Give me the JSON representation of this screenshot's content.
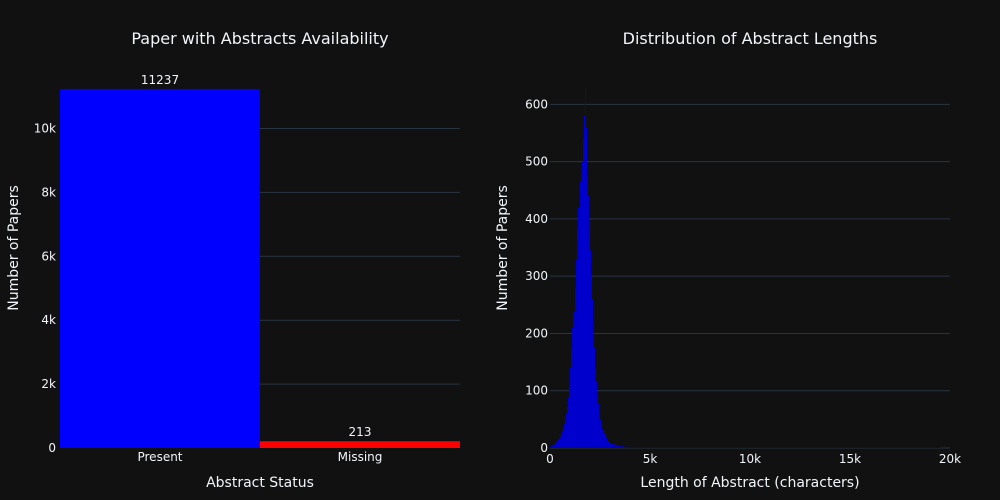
{
  "chart_data": [
    {
      "type": "bar",
      "title": "Paper with Abstracts Availability",
      "xlabel": "Abstract Status",
      "ylabel": "Number of Papers",
      "categories": [
        "Present",
        "Missing"
      ],
      "values": [
        11237,
        213
      ],
      "data_labels": [
        "11237",
        "213"
      ],
      "colors": [
        "#0000ff",
        "#ff0000"
      ],
      "ylim": [
        0,
        11830
      ],
      "yticks": [
        0,
        2000,
        4000,
        6000,
        8000,
        10000
      ],
      "ytick_labels": [
        "0",
        "2k",
        "4k",
        "6k",
        "8k",
        "10k"
      ],
      "grid": true,
      "legend": "none"
    },
    {
      "type": "bar",
      "subtype": "histogram",
      "title": "Distribution of Abstract Lengths",
      "xlabel": "Length of Abstract (characters)",
      "ylabel": "Number of Papers",
      "bar_color": "#0000cd",
      "xlim": [
        0,
        20000
      ],
      "ylim": [
        0,
        660
      ],
      "xticks": [
        0,
        5000,
        10000,
        15000,
        20000
      ],
      "xtick_labels": [
        "0",
        "5k",
        "10k",
        "15k",
        "20k"
      ],
      "yticks": [
        0,
        100,
        200,
        300,
        400,
        500,
        600
      ],
      "ytick_labels": [
        "0",
        "100",
        "200",
        "300",
        "400",
        "500",
        "600"
      ],
      "grid": true,
      "legend": "none",
      "bins": [
        [
          0,
          50,
          3
        ],
        [
          50,
          100,
          2
        ],
        [
          100,
          150,
          4
        ],
        [
          150,
          200,
          5
        ],
        [
          200,
          250,
          6
        ],
        [
          250,
          300,
          8
        ],
        [
          300,
          350,
          10
        ],
        [
          350,
          400,
          12
        ],
        [
          400,
          450,
          14
        ],
        [
          450,
          500,
          16
        ],
        [
          500,
          550,
          20
        ],
        [
          550,
          600,
          24
        ],
        [
          600,
          650,
          30
        ],
        [
          650,
          700,
          36
        ],
        [
          700,
          750,
          42
        ],
        [
          750,
          800,
          50
        ],
        [
          800,
          850,
          60
        ],
        [
          850,
          900,
          72
        ],
        [
          900,
          950,
          88
        ],
        [
          950,
          1000,
          110
        ],
        [
          1000,
          1050,
          140
        ],
        [
          1050,
          1100,
          175
        ],
        [
          1100,
          1150,
          210
        ],
        [
          1150,
          1200,
          235
        ],
        [
          1200,
          1250,
          238
        ],
        [
          1250,
          1300,
          280
        ],
        [
          1300,
          1350,
          330
        ],
        [
          1350,
          1400,
          385
        ],
        [
          1400,
          1450,
          420
        ],
        [
          1450,
          1500,
          415
        ],
        [
          1500,
          1550,
          465
        ],
        [
          1550,
          1600,
          480
        ],
        [
          1600,
          1650,
          500
        ],
        [
          1650,
          1700,
          540
        ],
        [
          1700,
          1750,
          580
        ],
        [
          1750,
          1800,
          628
        ],
        [
          1800,
          1850,
          560
        ],
        [
          1850,
          1900,
          470
        ],
        [
          1900,
          1950,
          440
        ],
        [
          1950,
          2000,
          395
        ],
        [
          2000,
          2050,
          345
        ],
        [
          2050,
          2100,
          300
        ],
        [
          2100,
          2150,
          260
        ],
        [
          2150,
          2200,
          215
        ],
        [
          2200,
          2250,
          175
        ],
        [
          2250,
          2300,
          140
        ],
        [
          2300,
          2350,
          115
        ],
        [
          2350,
          2400,
          95
        ],
        [
          2400,
          2450,
          78
        ],
        [
          2450,
          2500,
          62
        ],
        [
          2500,
          2550,
          50
        ],
        [
          2550,
          2600,
          40
        ],
        [
          2600,
          2650,
          34
        ],
        [
          2650,
          2700,
          30
        ],
        [
          2700,
          2750,
          26
        ],
        [
          2750,
          2800,
          22
        ],
        [
          2800,
          2850,
          18
        ],
        [
          2850,
          2900,
          15
        ],
        [
          2900,
          2950,
          12
        ],
        [
          2950,
          3000,
          10
        ],
        [
          3000,
          3100,
          8
        ],
        [
          3100,
          3200,
          7
        ],
        [
          3200,
          3300,
          6
        ],
        [
          3300,
          3400,
          5
        ],
        [
          3400,
          3500,
          4
        ],
        [
          3500,
          3700,
          3
        ],
        [
          3700,
          4000,
          2
        ],
        [
          4000,
          4500,
          1
        ],
        [
          4500,
          5000,
          1
        ],
        [
          5000,
          6000,
          1
        ],
        [
          6000,
          8000,
          1
        ],
        [
          8000,
          12000,
          1
        ],
        [
          12000,
          19500,
          1
        ]
      ]
    }
  ]
}
